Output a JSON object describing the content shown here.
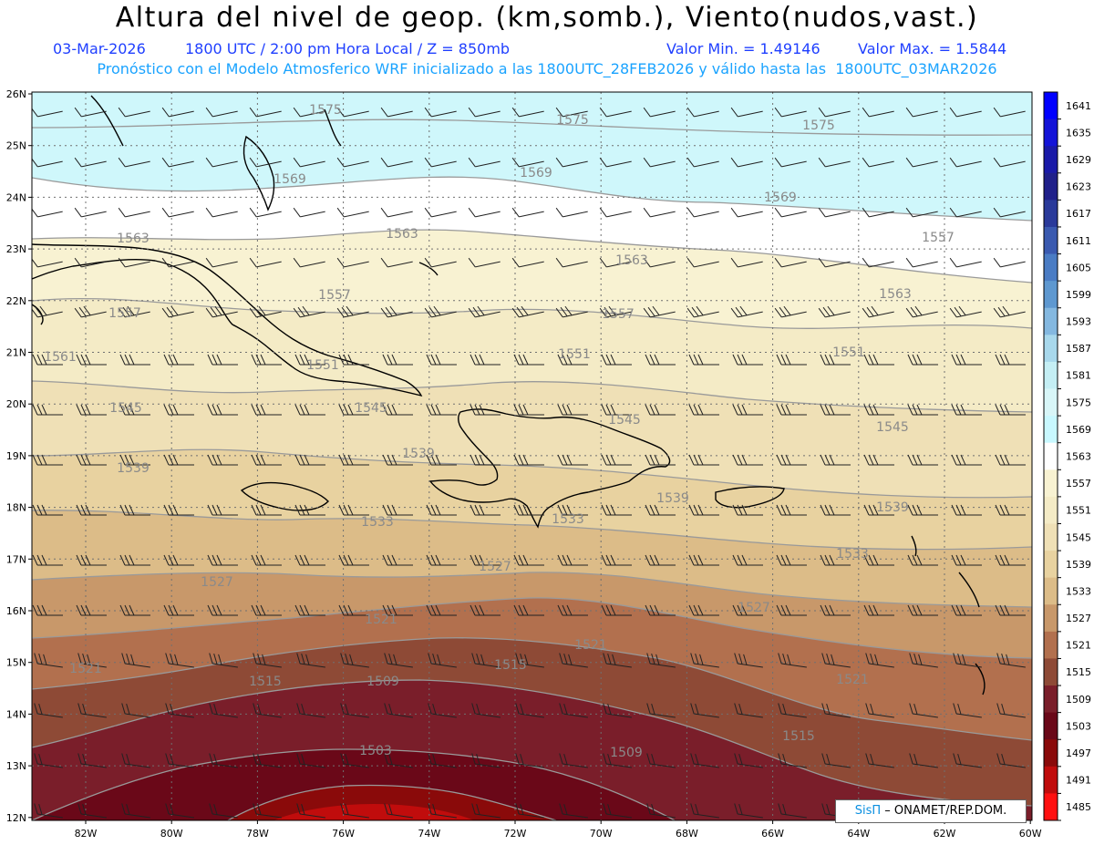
{
  "header": {
    "title": "Altura del nivel de geop. (km,somb.), Viento(nudos,vast.)",
    "date": "03-Mar-2026",
    "time": "1800 UTC / 2:00 pm Hora Local / Z = 850mb",
    "min": "Valor Min. = 1.49146",
    "max": "Valor Max. = 1.5844",
    "info": "Pronóstico con el Modelo Atmosferico WRF inicializado a las 1800UTC_28FEB2026 y válido hasta las  1800UTC_03MAR2026"
  },
  "credit": {
    "sis": "SisΠ",
    "rest": " – ONAMET/REP.DOM."
  },
  "axes": {
    "lat_labels": [
      "26N",
      "25N",
      "24N",
      "23N",
      "22N",
      "21N",
      "20N",
      "19N",
      "18N",
      "17N",
      "16N",
      "15N",
      "14N",
      "13N",
      "12N"
    ],
    "lon_labels": [
      "82W",
      "80W",
      "78W",
      "76W",
      "74W",
      "72W",
      "70W",
      "68W",
      "66W",
      "64W",
      "62W",
      "60W"
    ]
  },
  "legend": {
    "levels": [
      "1641",
      "1635",
      "1629",
      "1623",
      "1617",
      "1611",
      "1605",
      "1599",
      "1593",
      "1587",
      "1581",
      "1575",
      "1569",
      "1563",
      "1557",
      "1551",
      "1545",
      "1539",
      "1533",
      "1527",
      "1521",
      "1515",
      "1509",
      "1503",
      "1497",
      "1491",
      "1485"
    ],
    "colors": [
      "#0000ff",
      "#1414d8",
      "#1a1aa8",
      "#20208a",
      "#2a3a9a",
      "#3a5ab0",
      "#4a7cc4",
      "#5e98d0",
      "#84b8e0",
      "#a8d8ec",
      "#c4eef4",
      "#d8f6f8",
      "#c8f8ff",
      "#ffffff",
      "#f8f2d2",
      "#f4ebc6",
      "#efe0b6",
      "#e8d2a0",
      "#dcbc88",
      "#c8986a",
      "#b2704e",
      "#8e4a36",
      "#7a1e2a",
      "#6a0818",
      "#8a0a0a",
      "#c00c0c",
      "#ff1010"
    ]
  },
  "contour_labels": [
    {
      "text": "1575"
    },
    {
      "text": "1575"
    },
    {
      "text": "1575"
    },
    {
      "text": "1569"
    },
    {
      "text": "1569"
    },
    {
      "text": "1569"
    },
    {
      "text": "1563"
    },
    {
      "text": "1563"
    },
    {
      "text": "1563"
    },
    {
      "text": "1563"
    },
    {
      "text": "1557"
    },
    {
      "text": "1557"
    },
    {
      "text": "1557"
    },
    {
      "text": "1557"
    },
    {
      "text": "1561"
    },
    {
      "text": "1551"
    },
    {
      "text": "1551"
    },
    {
      "text": "1551"
    },
    {
      "text": "1545"
    },
    {
      "text": "1545"
    },
    {
      "text": "1545"
    },
    {
      "text": "1545"
    },
    {
      "text": "1539"
    },
    {
      "text": "1539"
    },
    {
      "text": "1539"
    },
    {
      "text": "1539"
    },
    {
      "text": "1533"
    },
    {
      "text": "1533"
    },
    {
      "text": "1533"
    },
    {
      "text": "1527"
    },
    {
      "text": "1527"
    },
    {
      "text": "1527"
    },
    {
      "text": "1521"
    },
    {
      "text": "1521"
    },
    {
      "text": "1521"
    },
    {
      "text": "1521"
    },
    {
      "text": "1515"
    },
    {
      "text": "1515"
    },
    {
      "text": "1515"
    },
    {
      "text": "1509"
    },
    {
      "text": "1509"
    },
    {
      "text": "1503"
    }
  ]
}
